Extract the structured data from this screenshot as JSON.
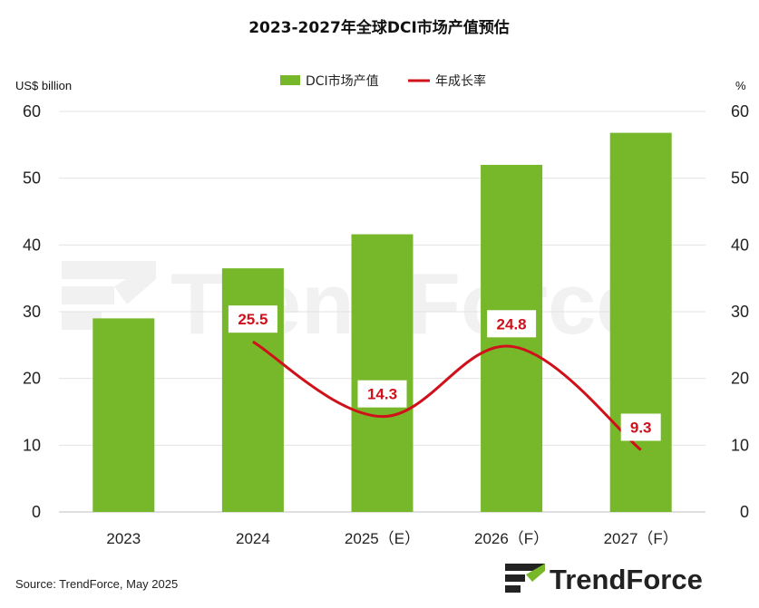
{
  "chart_data": {
    "type": "bar",
    "title": "2023-2027年全球DCI市场产值预估",
    "categories": [
      "2023",
      "2024",
      "2025（E）",
      "2026（F）",
      "2027（F）"
    ],
    "series": [
      {
        "name": "DCI市场产值",
        "type": "bar",
        "axis": "left",
        "color": "#76b82a",
        "values": [
          29,
          36.5,
          41.6,
          52,
          56.8
        ]
      },
      {
        "name": "年成长率",
        "type": "line",
        "axis": "right",
        "color": "#d0101a",
        "values": [
          null,
          25.5,
          14.3,
          24.8,
          9.3
        ],
        "labels": [
          "",
          "25.5",
          "14.3",
          "24.8",
          "9.3"
        ]
      }
    ],
    "y_left": {
      "label": "US$ billion",
      "range": [
        0,
        60
      ],
      "ticks": [
        "0",
        "10",
        "20",
        "30",
        "40",
        "50",
        "60"
      ]
    },
    "y_right": {
      "label": "%",
      "range": [
        0,
        60
      ],
      "ticks": [
        "0",
        "10",
        "20",
        "30",
        "40",
        "50",
        "60"
      ]
    },
    "grid": true,
    "legend_position": "top-center"
  },
  "source": "Source: TrendForce, May 2025",
  "logo_text": "TrendForce",
  "watermark_text": "TrendForce"
}
